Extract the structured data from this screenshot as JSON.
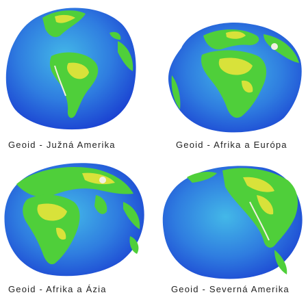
{
  "figure": {
    "panels": [
      {
        "caption": "Geoid - Južná Amerika",
        "view": "south-america"
      },
      {
        "caption": "Geoid - Afrika a Európa",
        "view": "africa-europe"
      },
      {
        "caption": "Geoid - Afrika a Ázia",
        "view": "africa-asia"
      },
      {
        "caption": "Geoid - Severná Amerika",
        "view": "north-america"
      }
    ],
    "colors": {
      "ocean_deep": "#1a3fd1",
      "ocean_mid": "#2f7de0",
      "ocean_shallow": "#43b8e8",
      "land_low": "#4fcf3a",
      "land_high": "#d8e23a",
      "peak": "#f2efe2",
      "background": "#ffffff"
    }
  }
}
